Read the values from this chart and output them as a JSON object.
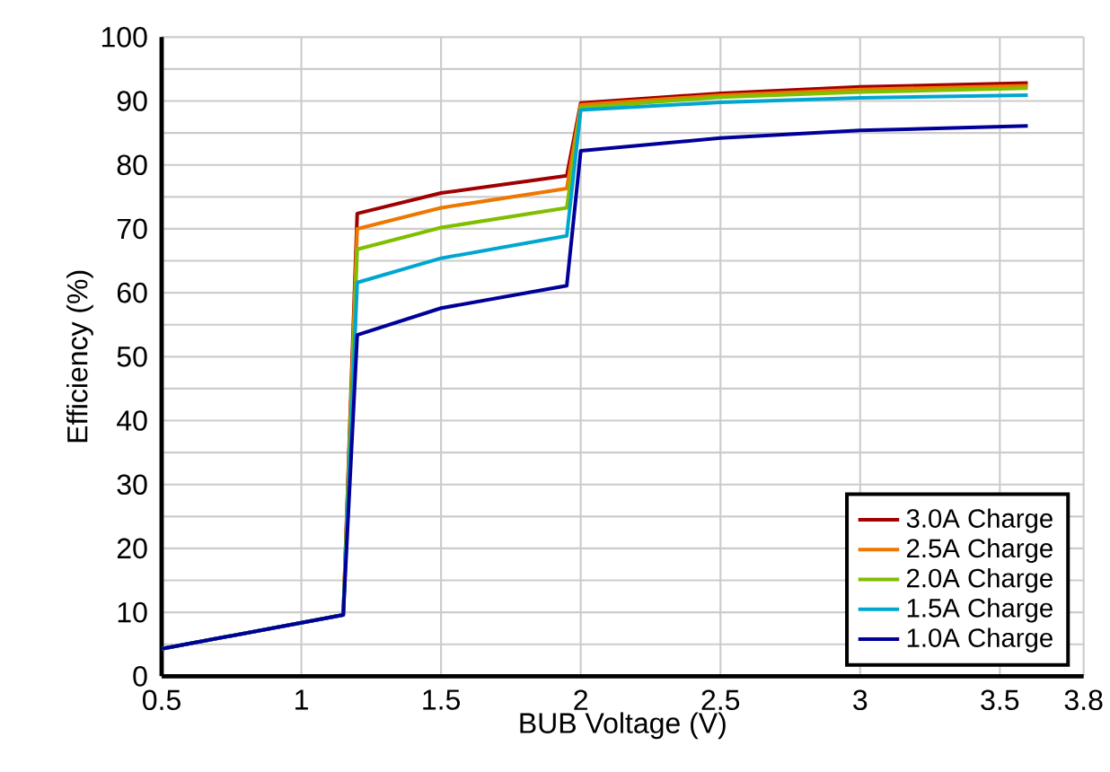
{
  "chart_data": {
    "type": "line",
    "xlabel": "BUB Voltage (V)",
    "ylabel": "Efficiency (%)",
    "xlim": [
      0.5,
      3.8
    ],
    "ylim": [
      0,
      100
    ],
    "xticks": [
      0.5,
      1,
      1.5,
      2,
      2.5,
      3,
      3.5,
      3.8
    ],
    "yticks": [
      0,
      {
        "value": 5,
        "label": null
      },
      10,
      {
        "value": 15,
        "label": null
      },
      20,
      {
        "value": 25,
        "label": null
      },
      30,
      {
        "value": 35,
        "label": null
      },
      40,
      {
        "value": 45,
        "label": null
      },
      50,
      {
        "value": 55,
        "label": null
      },
      60,
      {
        "value": 65,
        "label": null
      },
      70,
      {
        "value": 75,
        "label": null
      },
      80,
      {
        "value": 85,
        "label": null
      },
      90,
      {
        "value": 95,
        "label": null
      },
      100
    ],
    "grid": true,
    "legend": "bottom right",
    "marker": "none",
    "line_style": "solid",
    "x": [
      0.5,
      1.15,
      1.2,
      1.5,
      1.95,
      2.0,
      2.5,
      3.0,
      3.6
    ],
    "series": [
      {
        "name": "3.0A Charge",
        "color": "#a00000",
        "values": [
          4.3,
          9.6,
          72.4,
          75.6,
          78.3,
          89.7,
          91.2,
          92.2,
          92.8
        ]
      },
      {
        "name": "2.5A Charge",
        "color": "#ee7700",
        "values": [
          4.3,
          9.6,
          70.0,
          73.3,
          76.3,
          89.4,
          90.9,
          91.8,
          92.4
        ]
      },
      {
        "name": "2.0A Charge",
        "color": "#7fbf00",
        "values": [
          4.3,
          9.6,
          66.8,
          70.2,
          73.3,
          89.0,
          90.6,
          91.4,
          92.0
        ]
      },
      {
        "name": "1.5A Charge",
        "color": "#00a6d0",
        "values": [
          4.3,
          9.6,
          61.6,
          65.4,
          68.9,
          88.6,
          89.8,
          90.5,
          90.9
        ]
      },
      {
        "name": "1.0A Charge",
        "color": "#000099",
        "values": [
          4.3,
          9.6,
          53.4,
          57.6,
          61.1,
          82.2,
          84.2,
          85.4,
          86.1
        ]
      }
    ]
  }
}
